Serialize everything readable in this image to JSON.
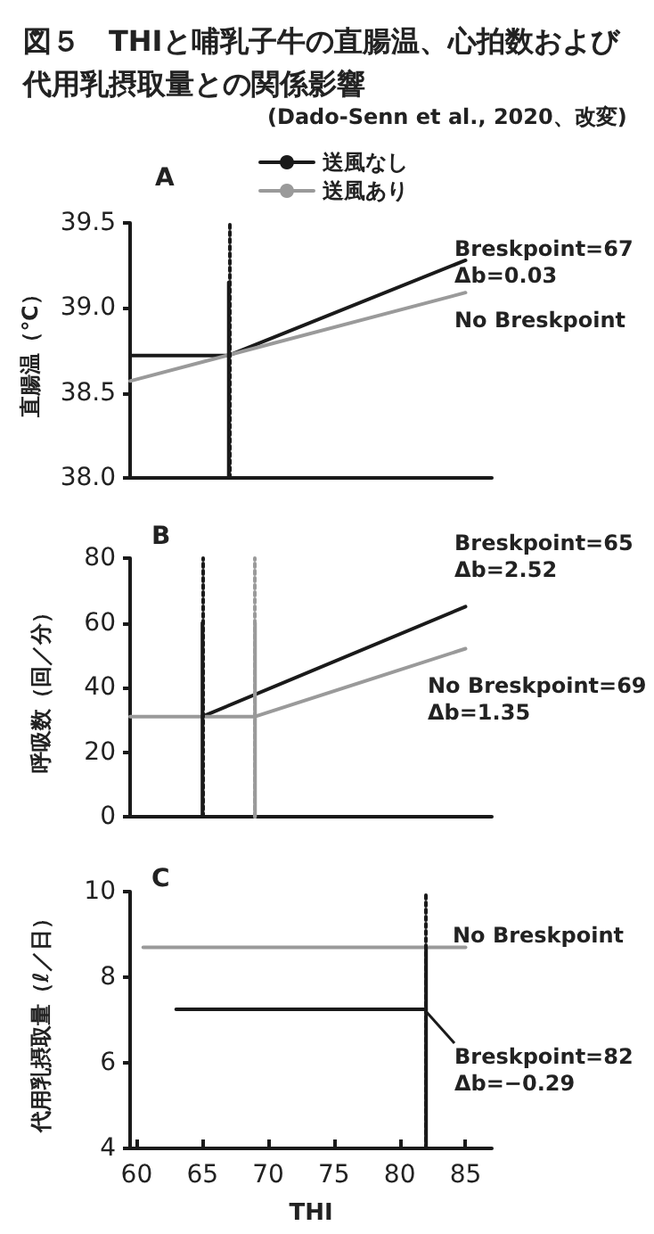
{
  "chart_data": [
    {
      "type": "line",
      "title": "図５　THIと哺乳子牛の直腸温、心拍数および代用乳摂取量との関係影響",
      "subtitle": "A",
      "ylabel": "直腸温（℃）",
      "xlim": [
        59.5,
        87
      ],
      "ylim": [
        38.0,
        39.5
      ],
      "yticks": [
        {
          "value": 38,
          "label": "38.0"
        },
        {
          "value": 38.5,
          "label": "38.5"
        },
        {
          "value": 39,
          "label": "39.0"
        },
        {
          "value": 39.5,
          "label": "39.5"
        }
      ],
      "tick_labels": "y",
      "legend": "top",
      "series": [
        {
          "name": "送風なし",
          "color": "#1a1a1a",
          "x": [
            59.5,
            67,
            85
          ],
          "values": [
            38.72,
            38.72,
            39.28
          ]
        },
        {
          "name": "送風あり",
          "color": "#9a9a9a",
          "x": [
            59.5,
            85
          ],
          "values": [
            38.57,
            39.09
          ]
        },
        {
          "color": "#1a1a1a",
          "x": [
            67,
            67
          ],
          "values": [
            38.0,
            39.15
          ]
        }
      ],
      "ref_lines": [
        {
          "axis": "x",
          "value": 67,
          "color": "#1a1a1a",
          "line_style": "dotted"
        }
      ],
      "annotations": [
        "(Dado-Senn et al., 2020、改変)",
        "Breskpoint=67\nΔb=0.03",
        "No Breskpoint"
      ]
    },
    {
      "type": "line",
      "title": "B",
      "ylabel": "呼吸数（回／分）",
      "xlim": [
        59.5,
        87
      ],
      "ylim": [
        0,
        80
      ],
      "yticks": [
        0,
        20,
        40,
        60,
        80
      ],
      "tick_labels": "y",
      "series": [
        {
          "color": "#1a1a1a",
          "x": [
            65,
            85
          ],
          "values": [
            31,
            65
          ]
        },
        {
          "color": "#9a9a9a",
          "x": [
            59.5,
            69,
            85
          ],
          "values": [
            31,
            31,
            52
          ]
        },
        {
          "color": "#1a1a1a",
          "x": [
            65,
            65
          ],
          "values": [
            0,
            60
          ]
        },
        {
          "color": "#9a9a9a",
          "x": [
            69,
            69
          ],
          "values": [
            0,
            60
          ]
        }
      ],
      "ref_lines": [
        {
          "axis": "x",
          "value": 65,
          "color": "#1a1a1a",
          "line_style": "dotted"
        },
        {
          "axis": "x",
          "value": 69,
          "color": "#9a9a9a",
          "line_style": "dotted"
        }
      ],
      "annotations": [
        "Breskpoint=65\nΔb=2.52",
        "No Breskpoint=69\nΔb=1.35"
      ]
    },
    {
      "type": "line",
      "title": "C",
      "xlabel": "THI",
      "ylabel": "代用乳摂取量（ℓ／日）",
      "xlim": [
        59.5,
        87
      ],
      "xticks": [
        60,
        65,
        70,
        75,
        80,
        85
      ],
      "ylim": [
        4,
        10
      ],
      "yticks": [
        4,
        6,
        8,
        10
      ],
      "series": [
        {
          "color": "#9a9a9a",
          "x": [
            60.5,
            85
          ],
          "values": [
            8.7,
            8.7
          ]
        },
        {
          "color": "#1a1a1a",
          "x": [
            63,
            82
          ],
          "values": [
            7.25,
            7.25
          ]
        },
        {
          "color": "#1a1a1a",
          "x": [
            82,
            82
          ],
          "values": [
            4,
            8.7
          ]
        }
      ],
      "ref_lines": [
        {
          "axis": "x",
          "value": 82,
          "color": "#1a1a1a",
          "line_style": "dotted"
        }
      ],
      "annotations": [
        "No Breskpoint",
        "Breskpoint=82\nΔb=−0.29"
      ]
    }
  ]
}
